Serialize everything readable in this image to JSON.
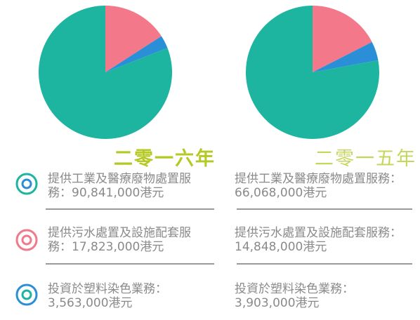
{
  "chart_data": [
    {
      "type": "pie",
      "title": "二零一六年",
      "categories": [
        "提供工業及醫療廢物處置服務：",
        "提供污水處置及設施配套服務：",
        "投資於塑料染色業務："
      ],
      "values": [
        90841000,
        17823000,
        3563000
      ],
      "value_labels": [
        "90,841,000港元",
        "17,823,000港元",
        "3,563,000港元"
      ],
      "colors": [
        "#1db5a0",
        "#f2788a",
        "#2b8fd8"
      ]
    },
    {
      "type": "pie",
      "title": "二零一五年",
      "categories": [
        "提供工業及醫療廢物處置服務：",
        "提供污水處置及設施配套服務：",
        "投資於塑料染色業務："
      ],
      "values": [
        66068000,
        14848000,
        3903000
      ],
      "value_labels": [
        "66,068,000港元",
        "14,848,000港元",
        "3,903,000港元"
      ],
      "colors": [
        "#1db5a0",
        "#f2788a",
        "#2b8fd8"
      ]
    }
  ]
}
